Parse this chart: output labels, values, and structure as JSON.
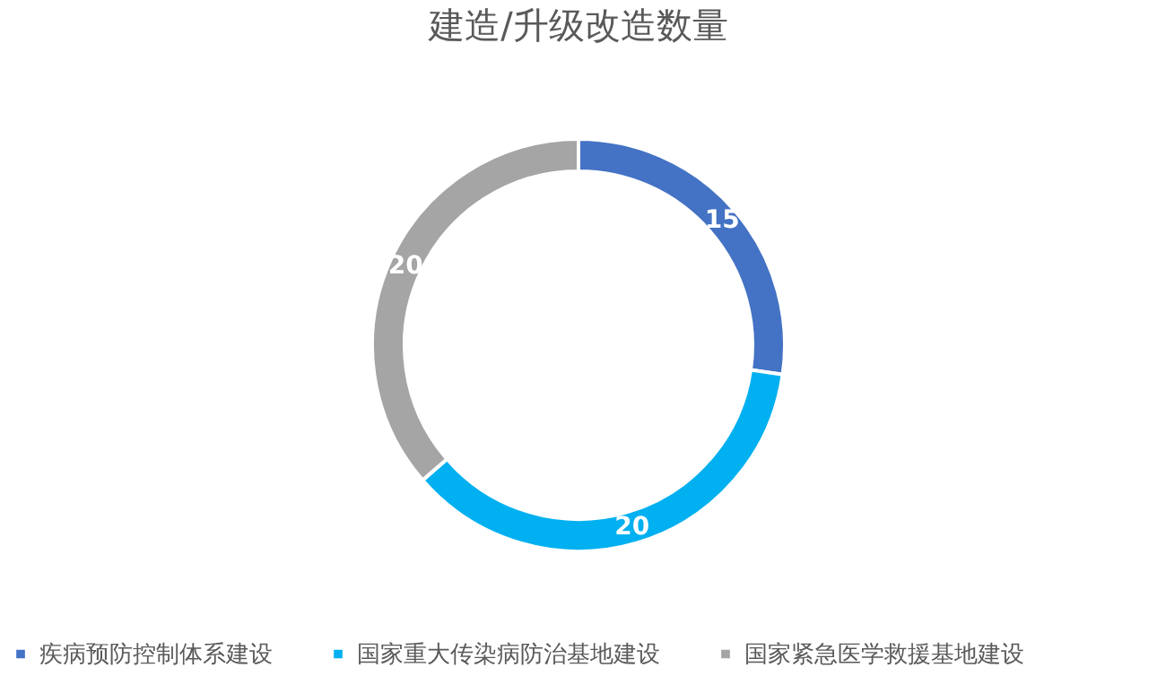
{
  "chart_data": {
    "type": "donut",
    "title": "建造/升级改造数量",
    "categories": [
      "疾病预防控制体系建设",
      "国家重大传染病防治基地建设",
      "国家紧急医学救援基地建设"
    ],
    "values": [
      15,
      20,
      20
    ],
    "colors": [
      "#4472c4",
      "#00b0f0",
      "#a5a5a5"
    ],
    "legend": "bottom",
    "data_labels": true
  }
}
